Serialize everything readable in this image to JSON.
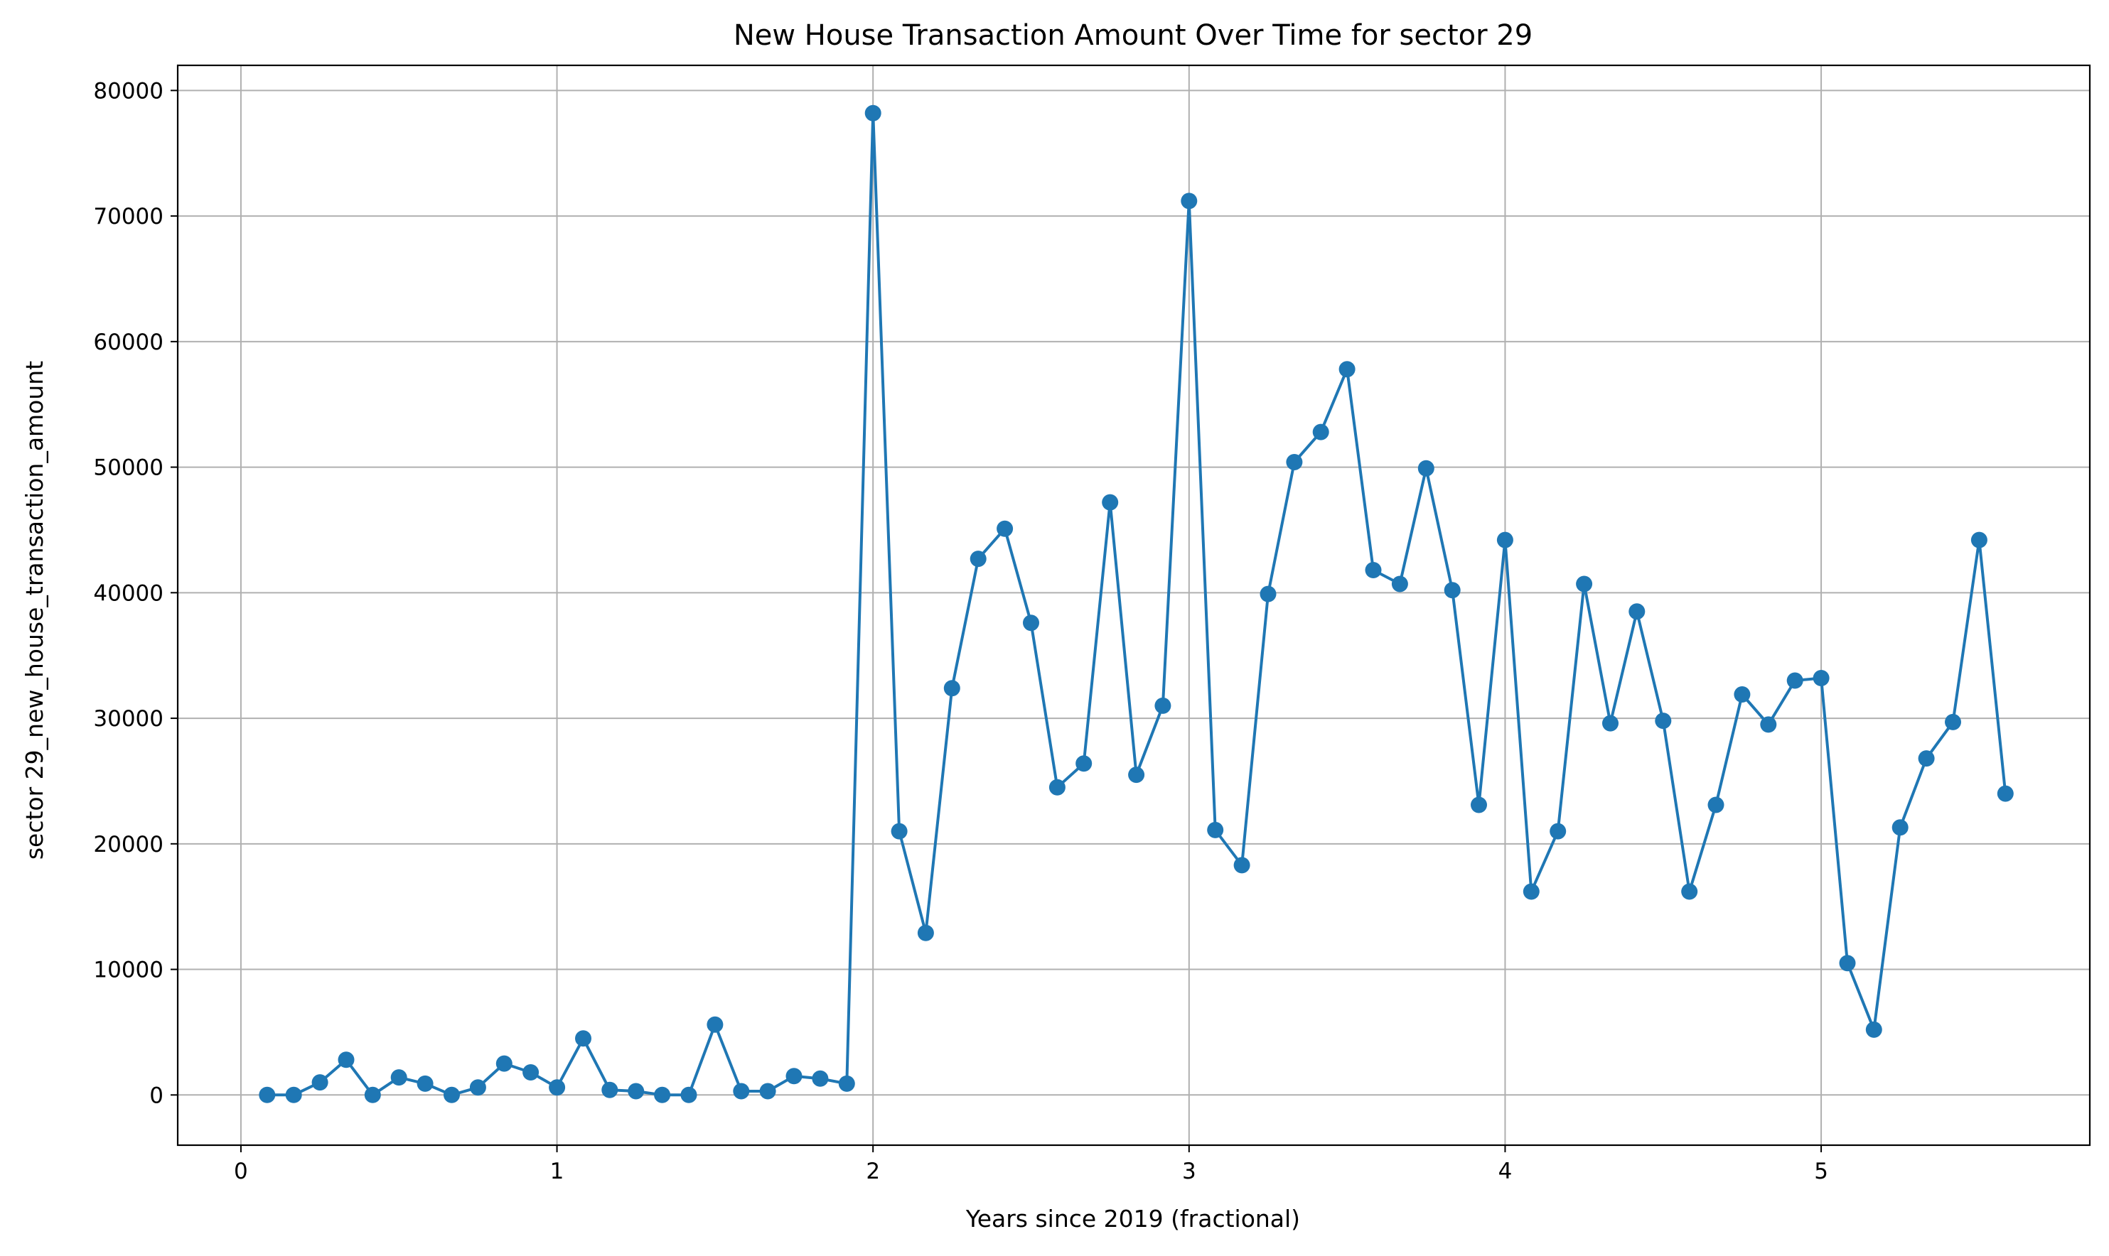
{
  "chart_data": {
    "type": "line",
    "title": "New House Transaction Amount Over Time for sector 29",
    "xlabel": "Years since 2019 (fractional)",
    "ylabel": "sector 29_new_house_transaction_amount",
    "xlim": [
      -0.2,
      5.85
    ],
    "ylim": [
      -4000,
      82000
    ],
    "xticks": [
      0,
      1,
      2,
      3,
      4,
      5
    ],
    "yticks": [
      0,
      10000,
      20000,
      30000,
      40000,
      50000,
      60000,
      70000,
      80000
    ],
    "grid": true,
    "marker": "circle",
    "series": [
      {
        "color": "#1f77b4",
        "points": [
          [
            0.083,
            0
          ],
          [
            0.167,
            0
          ],
          [
            0.25,
            1000
          ],
          [
            0.333,
            2800
          ],
          [
            0.417,
            0
          ],
          [
            0.5,
            1400
          ],
          [
            0.583,
            900
          ],
          [
            0.667,
            0
          ],
          [
            0.75,
            600
          ],
          [
            0.833,
            2500
          ],
          [
            0.917,
            1800
          ],
          [
            1.0,
            600
          ],
          [
            1.083,
            4500
          ],
          [
            1.167,
            400
          ],
          [
            1.25,
            300
          ],
          [
            1.333,
            0
          ],
          [
            1.417,
            0
          ],
          [
            1.5,
            5600
          ],
          [
            1.583,
            300
          ],
          [
            1.667,
            300
          ],
          [
            1.75,
            1500
          ],
          [
            1.833,
            1300
          ],
          [
            1.917,
            900
          ],
          [
            2.0,
            78200
          ],
          [
            2.083,
            21000
          ],
          [
            2.167,
            12900
          ],
          [
            2.25,
            32400
          ],
          [
            2.333,
            42700
          ],
          [
            2.417,
            45100
          ],
          [
            2.5,
            37600
          ],
          [
            2.583,
            24500
          ],
          [
            2.667,
            26400
          ],
          [
            2.75,
            47200
          ],
          [
            2.833,
            25500
          ],
          [
            2.917,
            31000
          ],
          [
            3.0,
            71200
          ],
          [
            3.083,
            21100
          ],
          [
            3.167,
            18300
          ],
          [
            3.25,
            39900
          ],
          [
            3.333,
            50400
          ],
          [
            3.417,
            52800
          ],
          [
            3.5,
            57800
          ],
          [
            3.583,
            41800
          ],
          [
            3.667,
            40700
          ],
          [
            3.75,
            49900
          ],
          [
            3.833,
            40200
          ],
          [
            3.917,
            23100
          ],
          [
            4.0,
            44200
          ],
          [
            4.083,
            16200
          ],
          [
            4.167,
            21000
          ],
          [
            4.25,
            40700
          ],
          [
            4.333,
            29600
          ],
          [
            4.417,
            38500
          ],
          [
            4.5,
            29800
          ],
          [
            4.583,
            16200
          ],
          [
            4.667,
            23100
          ],
          [
            4.75,
            31900
          ],
          [
            4.833,
            29500
          ],
          [
            4.917,
            33000
          ],
          [
            5.0,
            33200
          ],
          [
            5.083,
            10500
          ],
          [
            5.167,
            5200
          ],
          [
            5.25,
            21300
          ],
          [
            5.333,
            26800
          ],
          [
            5.417,
            29700
          ],
          [
            5.5,
            44200
          ],
          [
            5.583,
            24000
          ]
        ]
      }
    ]
  }
}
